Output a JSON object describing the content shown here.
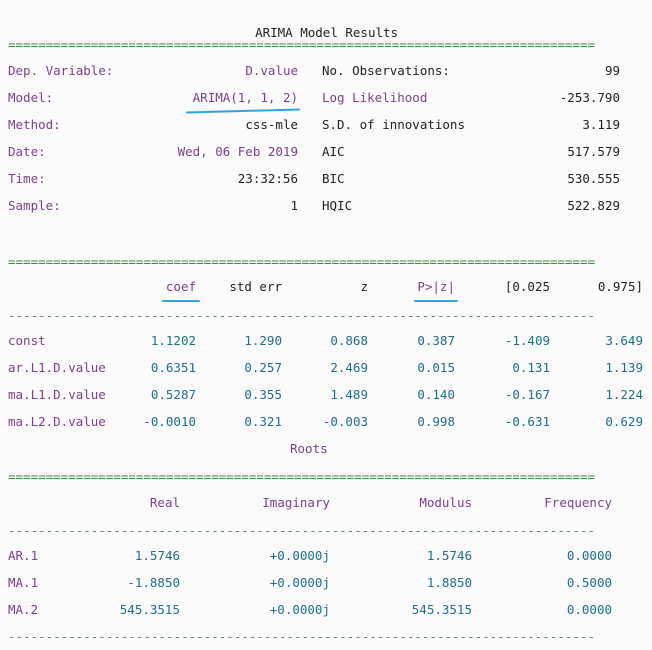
{
  "title": "ARIMA Model Results",
  "rules": {
    "eq": "==============================================================================",
    "dash": "------------------------------------------------------------------------------"
  },
  "summary_left": [
    {
      "label": "Dep. Variable:",
      "value": "D.value"
    },
    {
      "label": "Model:",
      "value": "ARIMA(1, 1, 2)"
    },
    {
      "label": "Method:",
      "value": "css-mle"
    },
    {
      "label": "Date:",
      "value": "Wed, 06 Feb 2019"
    },
    {
      "label": "Time:",
      "value": "23:32:56"
    },
    {
      "label": "Sample:",
      "value": "1"
    }
  ],
  "summary_right": [
    {
      "label": "No. Observations:",
      "value": "99"
    },
    {
      "label": "Log Likelihood",
      "value": "-253.790"
    },
    {
      "label": "S.D. of innovations",
      "value": "3.119"
    },
    {
      "label": "AIC",
      "value": "517.579"
    },
    {
      "label": "BIC",
      "value": "530.555"
    },
    {
      "label": "HQIC",
      "value": "522.829"
    }
  ],
  "coef_table": {
    "headers": [
      "coef",
      "std err",
      "z",
      "P>|z|",
      "[0.025",
      "0.975]"
    ],
    "rows": [
      {
        "name": "const",
        "cells": [
          "1.1202",
          "1.290",
          "0.868",
          "0.387",
          "-1.409",
          "3.649"
        ]
      },
      {
        "name": "ar.L1.D.value",
        "cells": [
          "0.6351",
          "0.257",
          "2.469",
          "0.015",
          "0.131",
          "1.139"
        ]
      },
      {
        "name": "ma.L1.D.value",
        "cells": [
          "0.5287",
          "0.355",
          "1.489",
          "0.140",
          "-0.167",
          "1.224"
        ]
      },
      {
        "name": "ma.L2.D.value",
        "cells": [
          "-0.0010",
          "0.321",
          "-0.003",
          "0.998",
          "-0.631",
          "0.629"
        ]
      }
    ]
  },
  "roots": {
    "title": "Roots",
    "headers": [
      "Real",
      "Imaginary",
      "Modulus",
      "Frequency"
    ],
    "rows": [
      {
        "name": "AR.1",
        "cells": [
          "1.5746",
          "+0.0000j",
          "1.5746",
          "0.0000"
        ]
      },
      {
        "name": "MA.1",
        "cells": [
          "-1.8850",
          "+0.0000j",
          "1.8850",
          "0.5000"
        ]
      },
      {
        "name": "MA.2",
        "cells": [
          "545.3515",
          "+0.0000j",
          "545.3515",
          "0.0000"
        ]
      }
    ]
  },
  "colors": {
    "annotation_underline": "#2aa3e6"
  }
}
